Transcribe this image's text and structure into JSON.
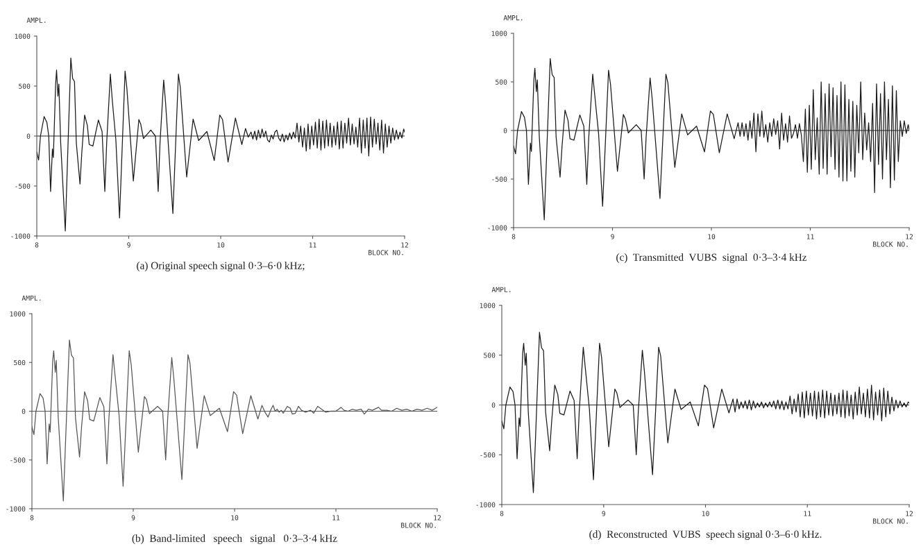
{
  "chart_data": [
    {
      "type": "line",
      "title": "(a) Original speech signal 0·3–6·0 kHz;",
      "xlabel": "BLOCK NO.",
      "ylabel": "AMPL.",
      "xlim": [
        8,
        12
      ],
      "ylim": [
        -1000,
        1000
      ],
      "xticks": [
        8,
        9,
        10,
        11,
        12
      ],
      "yticks": [
        -1000,
        -500,
        0,
        500,
        1000
      ],
      "grid": false,
      "ref_lines": [
        {
          "axis": "y",
          "value": 0,
          "color": "#222222"
        }
      ],
      "series": [
        {
          "color": "#1a1a1a",
          "x": [
            8.0,
            8.02,
            8.04,
            8.08,
            8.11,
            8.13,
            8.15,
            8.17,
            8.18,
            8.205,
            8.215,
            8.23,
            8.24,
            8.26,
            8.31,
            8.33,
            8.37,
            8.39,
            8.41,
            8.43,
            8.47,
            8.49,
            8.52,
            8.55,
            8.57,
            8.61,
            8.67,
            8.71,
            8.74,
            8.76,
            8.8,
            8.82,
            8.86,
            8.9,
            8.96,
            8.98,
            9.05,
            9.11,
            9.13,
            9.16,
            9.24,
            9.29,
            9.32,
            9.34,
            9.38,
            9.4,
            9.48,
            9.54,
            9.56,
            9.63,
            9.7,
            9.76,
            9.85,
            9.93,
            9.99,
            10.02,
            10.08,
            10.16,
            10.23,
            10.27,
            10.3,
            10.33,
            10.35,
            10.37,
            10.39,
            10.41,
            10.43,
            10.45,
            10.47,
            10.49,
            10.51,
            10.53,
            10.55,
            10.57,
            10.59,
            10.61,
            10.63,
            10.65,
            10.67,
            10.69,
            10.71,
            10.73,
            10.75,
            10.77,
            10.79,
            10.81,
            10.83,
            10.85,
            10.87,
            10.89,
            10.91,
            10.93,
            10.95,
            10.97,
            10.99,
            11.01,
            11.03,
            11.05,
            11.07,
            11.09,
            11.11,
            11.13,
            11.15,
            11.17,
            11.19,
            11.21,
            11.23,
            11.25,
            11.27,
            11.29,
            11.31,
            11.33,
            11.35,
            11.37,
            11.39,
            11.41,
            11.43,
            11.45,
            11.47,
            11.49,
            11.51,
            11.53,
            11.55,
            11.57,
            11.59,
            11.61,
            11.63,
            11.65,
            11.67,
            11.69,
            11.71,
            11.73,
            11.75,
            11.77,
            11.79,
            11.81,
            11.83,
            11.85,
            11.87,
            11.89,
            11.91,
            11.93,
            11.95,
            11.97,
            11.99,
            12.0
          ],
          "values": [
            -160,
            -240,
            0,
            195,
            135,
            0,
            -555,
            -130,
            -215,
            520,
            660,
            400,
            520,
            -70,
            -950,
            -365,
            780,
            575,
            545,
            -70,
            -480,
            -160,
            210,
            105,
            -85,
            -100,
            160,
            45,
            -555,
            -70,
            620,
            370,
            -40,
            -820,
            650,
            475,
            -450,
            165,
            120,
            -25,
            60,
            0,
            -555,
            -70,
            560,
            340,
            -775,
            620,
            490,
            -410,
            170,
            -45,
            45,
            -245,
            210,
            165,
            -260,
            180,
            -85,
            75,
            -10,
            40,
            -30,
            50,
            -40,
            60,
            -20,
            70,
            -10,
            50,
            -40,
            -60,
            10,
            -30,
            40,
            60,
            -20,
            -50,
            20,
            -60,
            10,
            -40,
            30,
            -30,
            40,
            -20,
            130,
            -60,
            100,
            -110,
            80,
            -150,
            120,
            -130,
            100,
            -90,
            140,
            -120,
            170,
            -140,
            150,
            -120,
            160,
            -100,
            130,
            -110,
            100,
            -90,
            140,
            -130,
            150,
            -120,
            130,
            -70,
            180,
            -90,
            120,
            -80,
            90,
            -110,
            180,
            -170,
            160,
            -120,
            180,
            -200,
            190,
            -110,
            170,
            -80,
            130,
            -140,
            160,
            -170,
            120,
            -110,
            100,
            -70,
            80,
            -40,
            60,
            -30,
            40,
            -20,
            70,
            40
          ]
        }
      ]
    },
    {
      "type": "line",
      "title": "(c)  Transmitted  VUBS  signal  0·3–3·4 kHz",
      "xlabel": "BLOCK NO.",
      "ylabel": "AMPL.",
      "xlim": [
        8,
        12
      ],
      "ylim": [
        -1000,
        1000
      ],
      "xticks": [
        8,
        9,
        10,
        11,
        12
      ],
      "yticks": [
        -1000,
        -500,
        0,
        500,
        1000
      ],
      "grid": false,
      "ref_lines": [
        {
          "axis": "y",
          "value": 0,
          "color": "#222222"
        }
      ],
      "series": [
        {
          "color": "#1a1a1a",
          "x": [
            8.0,
            8.02,
            8.04,
            8.08,
            8.11,
            8.13,
            8.15,
            8.17,
            8.18,
            8.205,
            8.215,
            8.23,
            8.24,
            8.26,
            8.31,
            8.33,
            8.37,
            8.39,
            8.41,
            8.43,
            8.47,
            8.49,
            8.52,
            8.55,
            8.57,
            8.61,
            8.67,
            8.71,
            8.74,
            8.76,
            8.8,
            8.82,
            8.86,
            8.9,
            8.96,
            8.98,
            9.05,
            9.11,
            9.13,
            9.16,
            9.24,
            9.29,
            9.32,
            9.34,
            9.38,
            9.4,
            9.48,
            9.54,
            9.56,
            9.63,
            9.7,
            9.76,
            9.85,
            9.93,
            9.99,
            10.02,
            10.08,
            10.16,
            10.23,
            10.27,
            10.29,
            10.31,
            10.33,
            10.35,
            10.37,
            10.39,
            10.41,
            10.43,
            10.45,
            10.47,
            10.49,
            10.51,
            10.53,
            10.55,
            10.57,
            10.59,
            10.61,
            10.63,
            10.65,
            10.67,
            10.69,
            10.71,
            10.73,
            10.75,
            10.77,
            10.79,
            10.81,
            10.83,
            10.85,
            10.87,
            10.89,
            10.91,
            10.93,
            10.95,
            10.97,
            10.99,
            11.01,
            11.03,
            11.05,
            11.07,
            11.09,
            11.11,
            11.13,
            11.15,
            11.17,
            11.19,
            11.21,
            11.23,
            11.25,
            11.27,
            11.29,
            11.31,
            11.33,
            11.35,
            11.37,
            11.39,
            11.41,
            11.43,
            11.45,
            11.47,
            11.49,
            11.51,
            11.53,
            11.55,
            11.57,
            11.59,
            11.61,
            11.63,
            11.65,
            11.67,
            11.69,
            11.71,
            11.73,
            11.75,
            11.77,
            11.79,
            11.81,
            11.83,
            11.85,
            11.87,
            11.89,
            11.91,
            11.93,
            11.95,
            11.97,
            11.99,
            12.0
          ],
          "values": [
            -160,
            -240,
            0,
            195,
            135,
            0,
            -555,
            -130,
            -215,
            520,
            640,
            400,
            520,
            -70,
            -920,
            -365,
            740,
            575,
            545,
            -70,
            -480,
            -160,
            210,
            105,
            -85,
            -100,
            160,
            45,
            -555,
            -70,
            580,
            370,
            -40,
            -780,
            620,
            475,
            -420,
            165,
            120,
            -25,
            60,
            0,
            -500,
            -70,
            540,
            340,
            -700,
            580,
            490,
            -380,
            170,
            -45,
            45,
            -220,
            200,
            165,
            -230,
            170,
            -85,
            80,
            -60,
            80,
            -60,
            70,
            -100,
            100,
            -80,
            180,
            -220,
            170,
            -60,
            200,
            -70,
            60,
            -120,
            80,
            -60,
            120,
            -40,
            100,
            -190,
            180,
            -100,
            70,
            -120,
            150,
            -80,
            -30,
            60,
            -80,
            70,
            -50,
            -320,
            220,
            -430,
            260,
            -400,
            420,
            -300,
            130,
            -450,
            500,
            -390,
            380,
            -450,
            480,
            -270,
            440,
            -400,
            360,
            -480,
            500,
            -520,
            470,
            -520,
            320,
            -420,
            300,
            -480,
            260,
            -230,
            500,
            -300,
            180,
            -200,
            80,
            -320,
            280,
            -640,
            480,
            -350,
            380,
            -500,
            500,
            -300,
            320,
            -590,
            460,
            -510,
            410,
            -320,
            100,
            -60,
            100,
            -30,
            60,
            0
          ]
        }
      ]
    },
    {
      "type": "line",
      "title": "(b)  Band-limited   speech   signal   0·3–3·4 kHz",
      "xlabel": "BLOCK NO.",
      "ylabel": "AMPL.",
      "xlim": [
        8,
        12
      ],
      "ylim": [
        -1000,
        1000
      ],
      "xticks": [
        8,
        9,
        10,
        11,
        12
      ],
      "yticks": [
        -1000,
        -500,
        0,
        500,
        1000
      ],
      "grid": false,
      "ref_lines": [
        {
          "axis": "y",
          "value": 0,
          "color": "#555555"
        }
      ],
      "series": [
        {
          "color": "#555555",
          "x": [
            8.0,
            8.02,
            8.04,
            8.08,
            8.11,
            8.13,
            8.15,
            8.17,
            8.18,
            8.205,
            8.215,
            8.23,
            8.24,
            8.26,
            8.31,
            8.33,
            8.37,
            8.39,
            8.41,
            8.43,
            8.47,
            8.49,
            8.52,
            8.55,
            8.57,
            8.61,
            8.67,
            8.71,
            8.74,
            8.76,
            8.8,
            8.82,
            8.86,
            8.9,
            8.96,
            8.98,
            9.05,
            9.11,
            9.13,
            9.16,
            9.24,
            9.29,
            9.32,
            9.34,
            9.38,
            9.4,
            9.48,
            9.54,
            9.56,
            9.63,
            9.7,
            9.76,
            9.85,
            9.93,
            9.99,
            10.02,
            10.08,
            10.16,
            10.23,
            10.27,
            10.3,
            10.33,
            10.36,
            10.38,
            10.4,
            10.42,
            10.44,
            10.46,
            10.48,
            10.52,
            10.55,
            10.57,
            10.6,
            10.63,
            10.66,
            10.7,
            10.75,
            10.78,
            10.82,
            10.86,
            10.9,
            10.95,
            11.0,
            11.05,
            11.08,
            11.12,
            11.16,
            11.2,
            11.25,
            11.28,
            11.32,
            11.36,
            11.42,
            11.45,
            11.5,
            11.55,
            11.6,
            11.65,
            11.7,
            11.75,
            11.8,
            11.85,
            11.9,
            11.95,
            12.0
          ],
          "values": [
            -160,
            -240,
            0,
            180,
            135,
            0,
            -540,
            -130,
            -215,
            520,
            620,
            400,
            520,
            -70,
            -920,
            -365,
            730,
            575,
            545,
            -70,
            -470,
            -160,
            200,
            105,
            -85,
            -100,
            140,
            45,
            -540,
            -70,
            580,
            370,
            -40,
            -770,
            620,
            475,
            -420,
            150,
            120,
            -25,
            50,
            0,
            -500,
            -70,
            550,
            340,
            -700,
            580,
            490,
            -380,
            160,
            -45,
            30,
            -210,
            200,
            165,
            -230,
            160,
            -80,
            60,
            -10,
            -60,
            20,
            60,
            0,
            20,
            -10,
            10,
            -20,
            50,
            30,
            -30,
            -20,
            50,
            10,
            -10,
            10,
            -20,
            50,
            20,
            -10,
            0,
            0,
            40,
            10,
            0,
            20,
            10,
            20,
            -30,
            20,
            10,
            40,
            10,
            10,
            0,
            30,
            10,
            20,
            0,
            20,
            10,
            30,
            10,
            40
          ]
        }
      ]
    },
    {
      "type": "line",
      "title": "(d)  Reconstructed  VUBS  speech signal 0·3–6·0 kHz.",
      "xlabel": "BLOCK NO.",
      "ylabel": "AMPL.",
      "xlim": [
        8,
        12
      ],
      "ylim": [
        -1000,
        1000
      ],
      "xticks": [
        8,
        9,
        10,
        11,
        12
      ],
      "yticks": [
        -1000,
        -500,
        0,
        500,
        1000
      ],
      "grid": false,
      "ref_lines": [
        {
          "axis": "y",
          "value": 0,
          "color": "#222222"
        }
      ],
      "series": [
        {
          "color": "#1a1a1a",
          "x": [
            8.0,
            8.02,
            8.04,
            8.08,
            8.11,
            8.13,
            8.15,
            8.17,
            8.18,
            8.205,
            8.215,
            8.23,
            8.24,
            8.26,
            8.31,
            8.33,
            8.37,
            8.39,
            8.41,
            8.43,
            8.47,
            8.49,
            8.52,
            8.55,
            8.57,
            8.61,
            8.67,
            8.71,
            8.74,
            8.76,
            8.8,
            8.82,
            8.86,
            8.9,
            8.96,
            8.98,
            9.05,
            9.11,
            9.13,
            9.16,
            9.24,
            9.29,
            9.32,
            9.34,
            9.38,
            9.4,
            9.48,
            9.54,
            9.56,
            9.63,
            9.7,
            9.76,
            9.85,
            9.93,
            9.99,
            10.02,
            10.08,
            10.16,
            10.23,
            10.27,
            10.29,
            10.31,
            10.33,
            10.35,
            10.37,
            10.39,
            10.41,
            10.43,
            10.45,
            10.47,
            10.49,
            10.51,
            10.53,
            10.55,
            10.57,
            10.59,
            10.61,
            10.63,
            10.65,
            10.67,
            10.69,
            10.71,
            10.73,
            10.75,
            10.77,
            10.79,
            10.81,
            10.83,
            10.85,
            10.87,
            10.89,
            10.91,
            10.93,
            10.95,
            10.97,
            10.99,
            11.01,
            11.03,
            11.05,
            11.07,
            11.09,
            11.11,
            11.13,
            11.15,
            11.17,
            11.19,
            11.21,
            11.23,
            11.25,
            11.27,
            11.29,
            11.31,
            11.33,
            11.35,
            11.37,
            11.39,
            11.41,
            11.43,
            11.45,
            11.47,
            11.49,
            11.51,
            11.53,
            11.55,
            11.57,
            11.59,
            11.61,
            11.63,
            11.65,
            11.67,
            11.69,
            11.71,
            11.73,
            11.75,
            11.77,
            11.79,
            11.81,
            11.83,
            11.85,
            11.87,
            11.89,
            11.91,
            11.93,
            11.95,
            11.97,
            11.99,
            12.0
          ],
          "values": [
            -160,
            -240,
            0,
            180,
            135,
            0,
            -540,
            -130,
            -215,
            520,
            620,
            400,
            520,
            -70,
            -880,
            -365,
            730,
            575,
            545,
            -70,
            -460,
            -160,
            200,
            105,
            -85,
            -100,
            140,
            45,
            -540,
            -70,
            580,
            370,
            -40,
            -750,
            620,
            475,
            -420,
            160,
            120,
            -25,
            50,
            0,
            -500,
            -70,
            550,
            340,
            -700,
            580,
            490,
            -380,
            160,
            -45,
            30,
            -210,
            200,
            165,
            -230,
            160,
            -80,
            60,
            -70,
            60,
            -40,
            30,
            -30,
            40,
            -40,
            50,
            -50,
            40,
            -30,
            20,
            -20,
            30,
            -30,
            20,
            -20,
            30,
            -20,
            40,
            -40,
            50,
            -40,
            40,
            -50,
            30,
            -40,
            90,
            -90,
            60,
            -70,
            110,
            -120,
            130,
            -130,
            140,
            -100,
            120,
            -110,
            140,
            -140,
            130,
            -120,
            150,
            -130,
            140,
            -100,
            120,
            -110,
            100,
            -90,
            120,
            -120,
            150,
            -130,
            140,
            -110,
            100,
            -140,
            130,
            -100,
            180,
            -90,
            120,
            -120,
            160,
            -130,
            200,
            -150,
            130,
            -100,
            150,
            -160,
            170,
            -120,
            140,
            -90,
            80,
            -60,
            50,
            -30,
            40,
            -20,
            20,
            -20,
            30,
            20
          ]
        }
      ]
    }
  ]
}
